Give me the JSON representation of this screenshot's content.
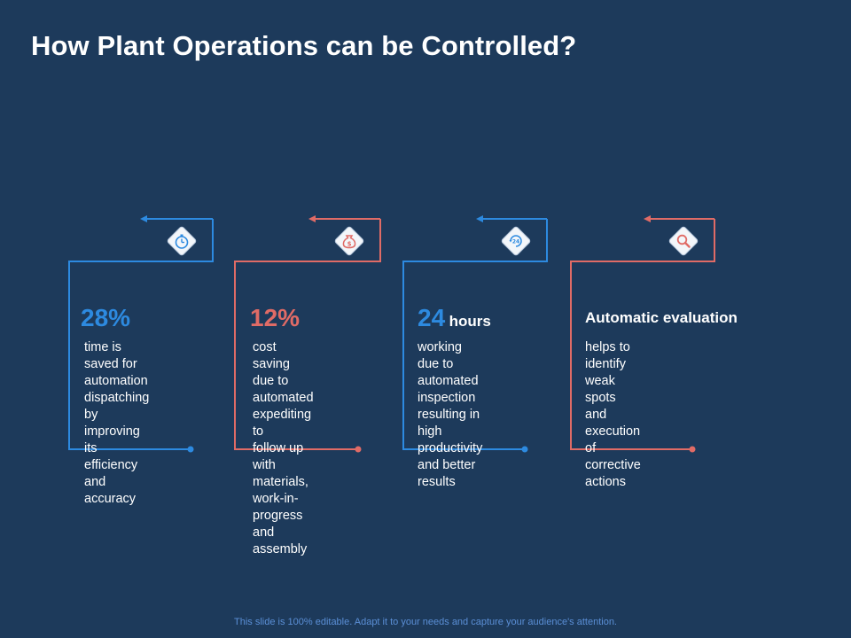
{
  "slide": {
    "title": "How Plant Operations can be Controlled?",
    "footer": "This slide is 100% editable. Adapt it to your needs and capture your audience's attention."
  },
  "colors": {
    "background": "#1d3a5b",
    "blue": "#2d8ae0",
    "red": "#e06b66"
  },
  "cards": [
    {
      "icon": "stopwatch-icon",
      "accent": "blue",
      "value": "28%",
      "unit": "",
      "heading": "",
      "description": "time is saved for\nautomation dispatching\nby improving its\nefficiency and accuracy"
    },
    {
      "icon": "money-bag-icon",
      "accent": "red",
      "value": "12%",
      "unit": "",
      "heading": "",
      "description": "cost saving due to\nautomated expediting  to\nfollow up with materials,\nwork-in-progress\nand assembly"
    },
    {
      "icon": "24-hours-icon",
      "accent": "blue",
      "value": "24",
      "unit": "hours",
      "heading": "",
      "description": "working due to\nautomated inspection\nresulting in high\nproductivity and better\nresults"
    },
    {
      "icon": "magnifier-icon",
      "accent": "red",
      "value": "",
      "unit": "",
      "heading": "Automatic evaluation",
      "description": "helps to identify weak\nspots and execution of\ncorrective actions"
    }
  ]
}
